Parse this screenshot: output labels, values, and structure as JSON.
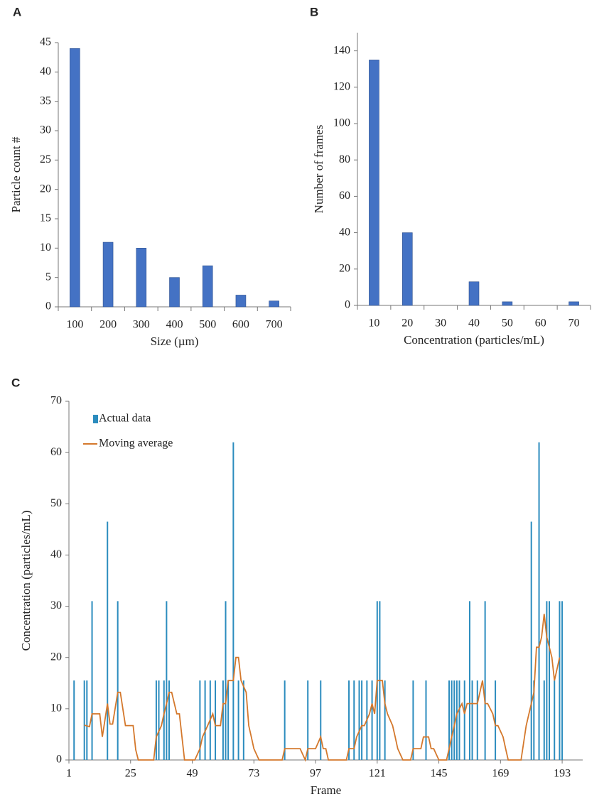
{
  "chart_data": [
    {
      "type": "bar",
      "label": "A",
      "categories": [
        "100",
        "200",
        "300",
        "400",
        "500",
        "600",
        "700"
      ],
      "values": [
        44,
        11,
        10,
        5,
        7,
        2,
        1
      ],
      "color": "#4472c4",
      "ylim": [
        0,
        45
      ],
      "yticks": [
        0,
        5,
        10,
        15,
        20,
        25,
        30,
        35,
        40,
        45
      ],
      "x_label": "Size (µm)",
      "y_label": "Particle count #",
      "grid": false
    },
    {
      "type": "bar",
      "label": "B",
      "categories": [
        "10",
        "20",
        "30",
        "40",
        "50",
        "60",
        "70"
      ],
      "values": [
        135,
        40,
        0,
        13,
        2,
        0,
        2
      ],
      "color": "#4472c4",
      "ylim": [
        0,
        150
      ],
      "yticks": [
        0,
        20,
        40,
        60,
        80,
        100,
        120,
        140
      ],
      "x_label": "Concentration (particles/mL)",
      "y_label": "Number of frames",
      "grid": false
    },
    {
      "type": "combo",
      "label": "C",
      "x_label": "Frame",
      "y_label": "Concentration (particles/mL)",
      "xlim": [
        1,
        201
      ],
      "xticks": [
        1,
        25,
        49,
        73,
        97,
        121,
        145,
        169,
        193
      ],
      "ylim": [
        0,
        70
      ],
      "yticks": [
        0,
        10,
        20,
        30,
        40,
        50,
        60,
        70
      ],
      "legend": "top-left",
      "grid": false,
      "series": [
        {
          "name": "Actual data",
          "type": "bar",
          "color": "#2b8cbe",
          "x": [
            3,
            7,
            8,
            10,
            16,
            20,
            35,
            36,
            38,
            39,
            40,
            52,
            54,
            56,
            58,
            61,
            62,
            63,
            65,
            67,
            69,
            85,
            94,
            99,
            110,
            112,
            114,
            115,
            117,
            119,
            121,
            122,
            124,
            135,
            140,
            149,
            150,
            151,
            152,
            153,
            155,
            157,
            158,
            160,
            163,
            167,
            181,
            182,
            184,
            186,
            187,
            188,
            190,
            192,
            193
          ],
          "values": [
            15.5,
            15.5,
            15.5,
            31,
            46.5,
            31,
            15.5,
            15.5,
            15.5,
            31,
            15.5,
            15.5,
            15.5,
            15.5,
            15.5,
            15.5,
            31,
            15.5,
            62,
            15.5,
            15.5,
            15.5,
            15.5,
            15.5,
            15.5,
            15.5,
            15.5,
            15.5,
            15.5,
            15.5,
            31,
            31,
            15.5,
            15.5,
            15.5,
            15.5,
            15.5,
            15.5,
            15.5,
            15.5,
            15.5,
            31,
            15.5,
            15.5,
            31,
            15.5,
            46.5,
            15.5,
            62,
            15.5,
            31,
            31,
            15.5,
            31,
            31
          ]
        },
        {
          "name": "Moving average",
          "type": "line",
          "color": "#d4782c",
          "x": [
            7,
            9,
            10,
            13,
            14,
            16,
            17,
            18,
            20,
            21,
            23,
            26,
            27,
            28,
            34,
            35,
            37,
            38,
            39,
            40,
            41,
            43,
            44,
            45,
            46,
            50,
            52,
            53,
            55,
            57,
            58,
            60,
            61,
            62,
            63,
            65,
            66,
            67,
            68,
            70,
            71,
            72,
            73,
            75,
            84,
            85,
            91,
            93,
            94,
            97,
            99,
            100,
            101,
            102,
            109,
            110,
            112,
            113,
            115,
            116,
            118,
            119,
            120,
            121,
            123,
            124,
            125,
            127,
            128,
            129,
            131,
            134,
            135,
            138,
            139,
            141,
            142,
            143,
            145,
            148,
            149,
            150,
            151,
            152,
            154,
            155,
            156,
            160,
            162,
            163,
            164,
            166,
            167,
            168,
            170,
            171,
            172,
            177,
            179,
            181,
            182,
            183,
            184,
            185,
            186,
            187,
            189,
            190,
            192
          ],
          "values": [
            6.8,
            6.5,
            9,
            9,
            4.5,
            11,
            7,
            7,
            13.2,
            13.2,
            6.7,
            6.7,
            2,
            0,
            0,
            4.5,
            6.7,
            9,
            11,
            13.2,
            13.2,
            9,
            9,
            4.5,
            0,
            0,
            2.2,
            4.5,
            6.7,
            9,
            6.7,
            6.7,
            11,
            11,
            15.5,
            15.5,
            20,
            20,
            15.5,
            13.2,
            6.7,
            4.5,
            2.2,
            0,
            0,
            2.2,
            2.2,
            0,
            2.2,
            2.2,
            4.5,
            2.2,
            2.2,
            0,
            0,
            2.2,
            2.2,
            4.5,
            6.7,
            6.7,
            9,
            11,
            9,
            15.5,
            15.5,
            11,
            9,
            6.7,
            4.5,
            2.2,
            0,
            0,
            2.2,
            2.2,
            4.5,
            4.5,
            2.2,
            2.2,
            0,
            0,
            2.2,
            4.5,
            6.7,
            9,
            11,
            9,
            11,
            11,
            15.5,
            11,
            11,
            9,
            6.7,
            6.7,
            4.5,
            2.2,
            0,
            0,
            6.7,
            11,
            13.2,
            22,
            22,
            24,
            28.5,
            24,
            20,
            15.5,
            20
          ]
        }
      ]
    }
  ]
}
